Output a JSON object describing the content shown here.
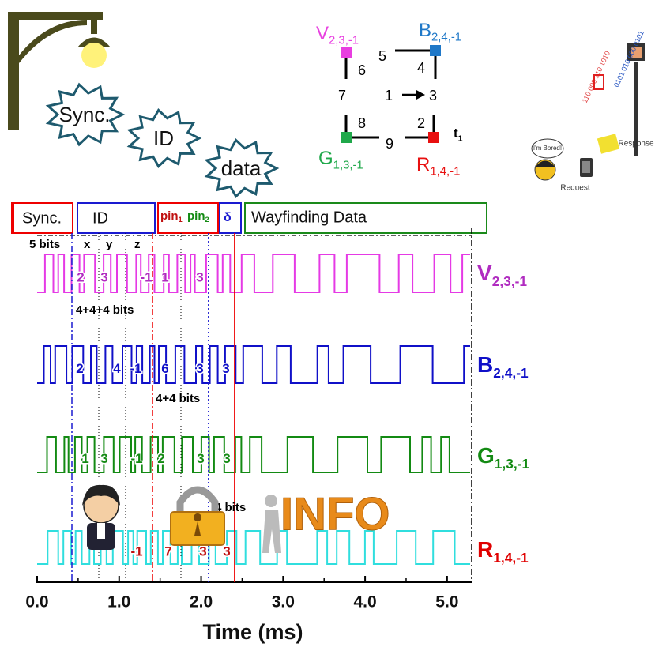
{
  "bursts": [
    "Sync.",
    "ID",
    "data"
  ],
  "grid": {
    "nodes": [
      {
        "name": "V",
        "sub": "2,3,-1",
        "color": "#e83ee0"
      },
      {
        "name": "B",
        "sub": "2,4,-1",
        "color": "#1f78c8"
      },
      {
        "name": "G",
        "sub": "1,3,-1",
        "color": "#1fa84a"
      },
      {
        "name": "R",
        "sub": "1,4,-1",
        "color": "#e81010"
      }
    ],
    "edges": [
      "5",
      "6",
      "4",
      "7",
      "1",
      "3",
      "8",
      "2",
      "9"
    ],
    "time": {
      "name": "t",
      "sub": "1"
    }
  },
  "frame": {
    "sync": "Sync.",
    "id": "ID",
    "pin1": {
      "name": "pin",
      "sub": "1"
    },
    "pin2": {
      "name": "pin",
      "sub": "2"
    },
    "delta": "δ",
    "data": "Wayfinding Data"
  },
  "annotations": {
    "bits5": "5 bits",
    "x": "x",
    "y": "y",
    "z": "z",
    "bits12": "4+4+4 bits",
    "bits8": "4+4 bits",
    "bits4": "4 bits"
  },
  "chart_data": {
    "type": "waveform",
    "xlabel": "Time (ms)",
    "xlim": [
      0,
      5.3
    ],
    "xticks": [
      {
        "value": 0,
        "label": "0.0"
      },
      {
        "value": 1,
        "label": "1.0"
      },
      {
        "value": 2,
        "label": "2.0"
      },
      {
        "value": 3,
        "label": "3.0"
      },
      {
        "value": 4,
        "label": "4.0"
      },
      {
        "value": 5,
        "label": "5.0"
      }
    ],
    "rows": [
      {
        "name": "V",
        "sub": "2,3,-1",
        "color": "#e53ae5",
        "label_color": "#b02cc0",
        "labels": [
          "2",
          "3",
          "-1",
          "1",
          "3"
        ]
      },
      {
        "name": "B",
        "sub": "2,4,-1",
        "color": "#1010c8",
        "label_color": "#1010c8",
        "labels": [
          "2",
          "4",
          "-1",
          "6",
          "3",
          "3"
        ]
      },
      {
        "name": "G",
        "sub": "1,3,-1",
        "color": "#138a13",
        "label_color": "#138a13",
        "labels": [
          "1",
          "3",
          "-1",
          "2",
          "3",
          "3"
        ]
      },
      {
        "name": "R",
        "sub": "1,4,-1",
        "color": "#30dede",
        "label_color": "#c01010",
        "labels": [
          "-1",
          "7",
          "3",
          "3"
        ]
      }
    ]
  },
  "illustration": {
    "bubble": "I'm Bored!",
    "request": "Request",
    "response": "Response",
    "info": "INFO"
  }
}
